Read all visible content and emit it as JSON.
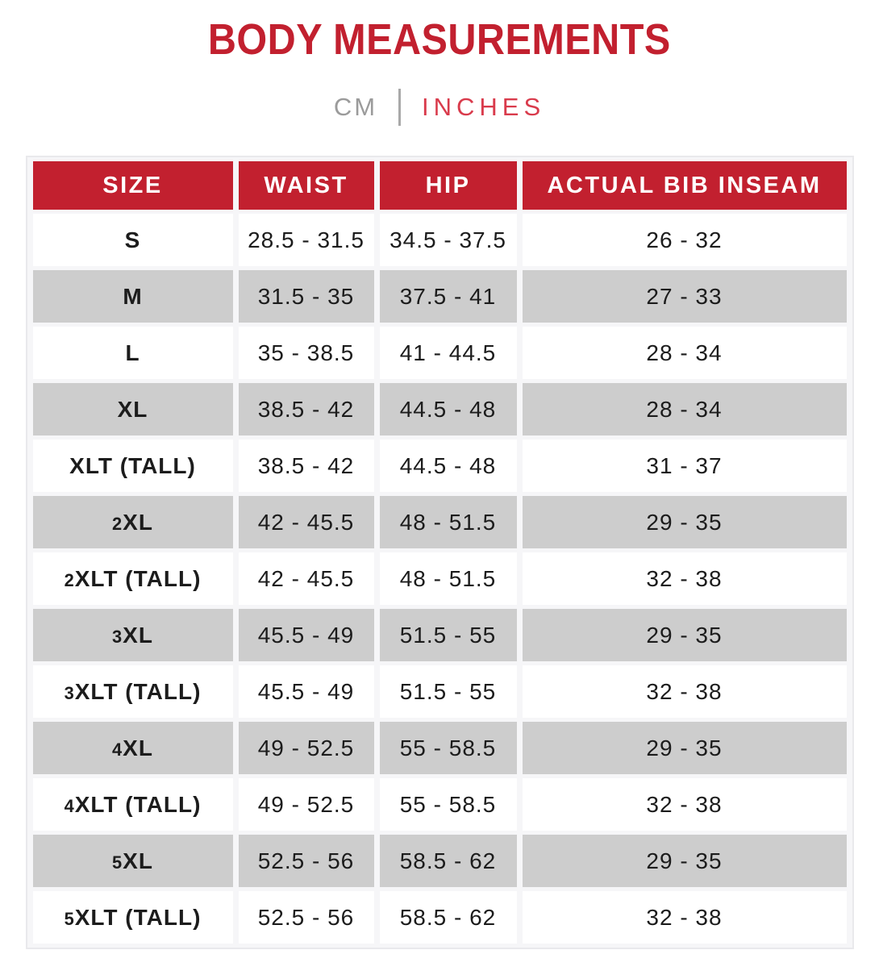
{
  "title": "BODY MEASUREMENTS",
  "unit_toggle": {
    "cm_label": "CM",
    "inches_label": "INCHES",
    "active_unit": "INCHES"
  },
  "colors": {
    "accent_red": "#C2202F",
    "active_unit_red": "#D93B4C",
    "inactive_gray": "#9B9B9B",
    "row_gray": "#CDCDCD",
    "body_text": "#1C1C1C",
    "table_border": "#E9E9EC"
  },
  "table": {
    "columns": [
      "SIZE",
      "WAIST",
      "HIP",
      "ACTUAL BIB INSEAM"
    ],
    "rows": [
      {
        "size": "S",
        "waist": "28.5 - 31.5",
        "hip": "34.5 - 37.5",
        "inseam": "26 - 32"
      },
      {
        "size": "M",
        "waist": "31.5 - 35",
        "hip": "37.5 - 41",
        "inseam": "27 - 33"
      },
      {
        "size": "L",
        "waist": "35 - 38.5",
        "hip": "41 - 44.5",
        "inseam": "28 - 34"
      },
      {
        "size": "XL",
        "waist": "38.5 - 42",
        "hip": "44.5 - 48",
        "inseam": "28 - 34"
      },
      {
        "size": "XLT (TALL)",
        "waist": "38.5 - 42",
        "hip": "44.5 - 48",
        "inseam": "31 - 37"
      },
      {
        "size": "2XL",
        "waist": "42 - 45.5",
        "hip": "48 - 51.5",
        "inseam": "29 - 35"
      },
      {
        "size": "2XLT (TALL)",
        "waist": "42 - 45.5",
        "hip": "48 - 51.5",
        "inseam": "32 - 38"
      },
      {
        "size": "3XL",
        "waist": "45.5 - 49",
        "hip": "51.5 - 55",
        "inseam": "29 - 35"
      },
      {
        "size": "3XLT (TALL)",
        "waist": "45.5 - 49",
        "hip": "51.5 - 55",
        "inseam": "32 - 38"
      },
      {
        "size": "4XL",
        "waist": "49 - 52.5",
        "hip": "55 - 58.5",
        "inseam": "29 - 35"
      },
      {
        "size": "4XLT (TALL)",
        "waist": "49 - 52.5",
        "hip": "55 - 58.5",
        "inseam": "32 - 38"
      },
      {
        "size": "5XL",
        "waist": "52.5 - 56",
        "hip": "58.5 - 62",
        "inseam": "29 - 35"
      },
      {
        "size": "5XLT (TALL)",
        "waist": "52.5 - 56",
        "hip": "58.5 - 62",
        "inseam": "32 - 38"
      }
    ]
  }
}
